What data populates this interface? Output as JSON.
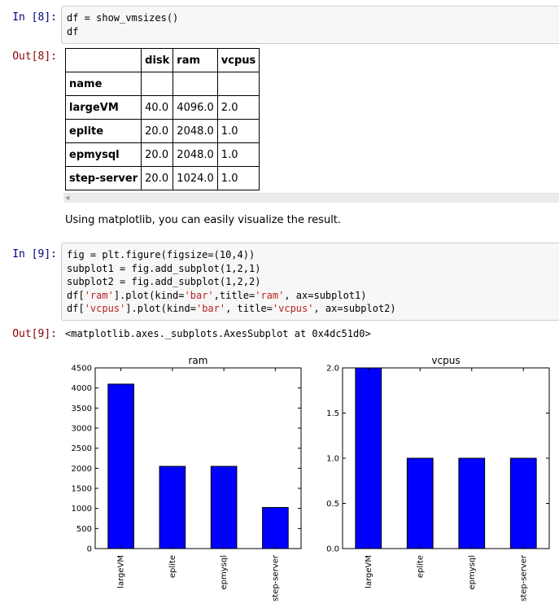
{
  "cells": {
    "in8": {
      "prompt": "In [8]:",
      "lines": [
        "df = show_vmsizes()",
        "df"
      ]
    },
    "out8": {
      "prompt": "Out[8]:"
    },
    "markdown": {
      "text": "Using matplotlib, you can easily visualize the result."
    },
    "in9": {
      "prompt": "In [9]:"
    },
    "out9": {
      "prompt": "Out[9]:",
      "text": "<matplotlib.axes._subplots.AxesSubplot at 0x4dc51d0>"
    }
  },
  "code9": [
    [
      {
        "t": "fig = plt.figure(figsize=(10,4))",
        "c": "plain"
      }
    ],
    [
      {
        "t": "subplot1 = fig.add_subplot(1,2,1)",
        "c": "plain"
      }
    ],
    [
      {
        "t": "subplot2 = fig.add_subplot(1,2,2)",
        "c": "plain"
      }
    ],
    [
      {
        "t": "df[",
        "c": "plain"
      },
      {
        "t": "'ram'",
        "c": "str"
      },
      {
        "t": "].plot(kind=",
        "c": "plain"
      },
      {
        "t": "'bar'",
        "c": "str"
      },
      {
        "t": ",title=",
        "c": "plain"
      },
      {
        "t": "'ram'",
        "c": "str"
      },
      {
        "t": ", ax=subplot1)",
        "c": "plain"
      }
    ],
    [
      {
        "t": "df[",
        "c": "plain"
      },
      {
        "t": "'vcpus'",
        "c": "str"
      },
      {
        "t": "].plot(kind=",
        "c": "plain"
      },
      {
        "t": "'bar'",
        "c": "str"
      },
      {
        "t": ", title=",
        "c": "plain"
      },
      {
        "t": "'vcpus'",
        "c": "str"
      },
      {
        "t": ", ax=subplot2)",
        "c": "plain"
      }
    ]
  ],
  "dataframe": {
    "columns": [
      "",
      "disk",
      "ram",
      "vcpus"
    ],
    "index_name": "name",
    "rows": [
      [
        "largeVM",
        "40.0",
        "4096.0",
        "2.0"
      ],
      [
        "eplite",
        "20.0",
        "2048.0",
        "1.0"
      ],
      [
        "epmysql",
        "20.0",
        "2048.0",
        "1.0"
      ],
      [
        "step-server",
        "20.0",
        "1024.0",
        "1.0"
      ]
    ]
  },
  "colors": {
    "bar": "#0000ff",
    "string": "#ba2121",
    "in_prompt": "#000080",
    "out_prompt": "#8b0000"
  },
  "chart_data": [
    {
      "type": "bar",
      "title": "ram",
      "categories": [
        "largeVM",
        "eplite",
        "epmysql",
        "step-server"
      ],
      "values": [
        4096,
        2048,
        2048,
        1024
      ],
      "ylim": [
        0,
        4500
      ],
      "yticks": [
        "0",
        "500",
        "1000",
        "1500",
        "2000",
        "2500",
        "3000",
        "3500",
        "4000",
        "4500"
      ],
      "xlabel": "",
      "ylabel": "",
      "grid": false
    },
    {
      "type": "bar",
      "title": "vcpus",
      "categories": [
        "largeVM",
        "eplite",
        "epmysql",
        "step-server"
      ],
      "values": [
        2.0,
        1.0,
        1.0,
        1.0
      ],
      "ylim": [
        0,
        2.0
      ],
      "yticks": [
        "0.0",
        "0.5",
        "1.0",
        "1.5",
        "2.0"
      ],
      "xlabel": "",
      "ylabel": "",
      "grid": false
    }
  ]
}
